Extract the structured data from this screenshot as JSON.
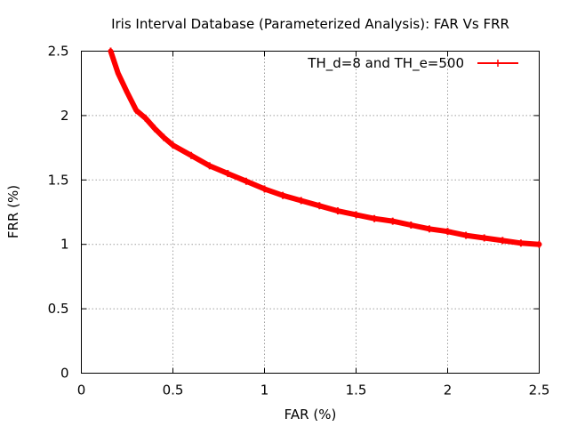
{
  "chart_data": {
    "type": "line",
    "title": "Iris Interval Database (Parameterized Analysis): FAR Vs FRR",
    "xlabel": "FAR (%)",
    "ylabel": "FRR (%)",
    "xlim": [
      0,
      2.5
    ],
    "ylim": [
      0,
      2.5
    ],
    "x_ticks": [
      "0",
      "0.5",
      "1",
      "1.5",
      "2",
      "2.5"
    ],
    "y_ticks": [
      "0",
      "0.5",
      "1",
      "1.5",
      "2",
      "2.5"
    ],
    "grid": true,
    "legend_position": "top-right",
    "series": [
      {
        "name": "TH_d=8 and TH_e=500",
        "color": "#ff0000",
        "x": [
          0.16,
          0.2,
          0.25,
          0.3,
          0.35,
          0.4,
          0.45,
          0.5,
          0.6,
          0.7,
          0.8,
          0.9,
          1.0,
          1.1,
          1.2,
          1.3,
          1.4,
          1.5,
          1.6,
          1.7,
          1.8,
          1.9,
          2.0,
          2.1,
          2.2,
          2.3,
          2.4,
          2.5
        ],
        "y": [
          2.5,
          2.33,
          2.18,
          2.04,
          1.98,
          1.9,
          1.83,
          1.77,
          1.69,
          1.61,
          1.55,
          1.49,
          1.43,
          1.38,
          1.34,
          1.3,
          1.26,
          1.23,
          1.2,
          1.18,
          1.15,
          1.12,
          1.1,
          1.07,
          1.05,
          1.03,
          1.01,
          1.0
        ]
      }
    ]
  }
}
